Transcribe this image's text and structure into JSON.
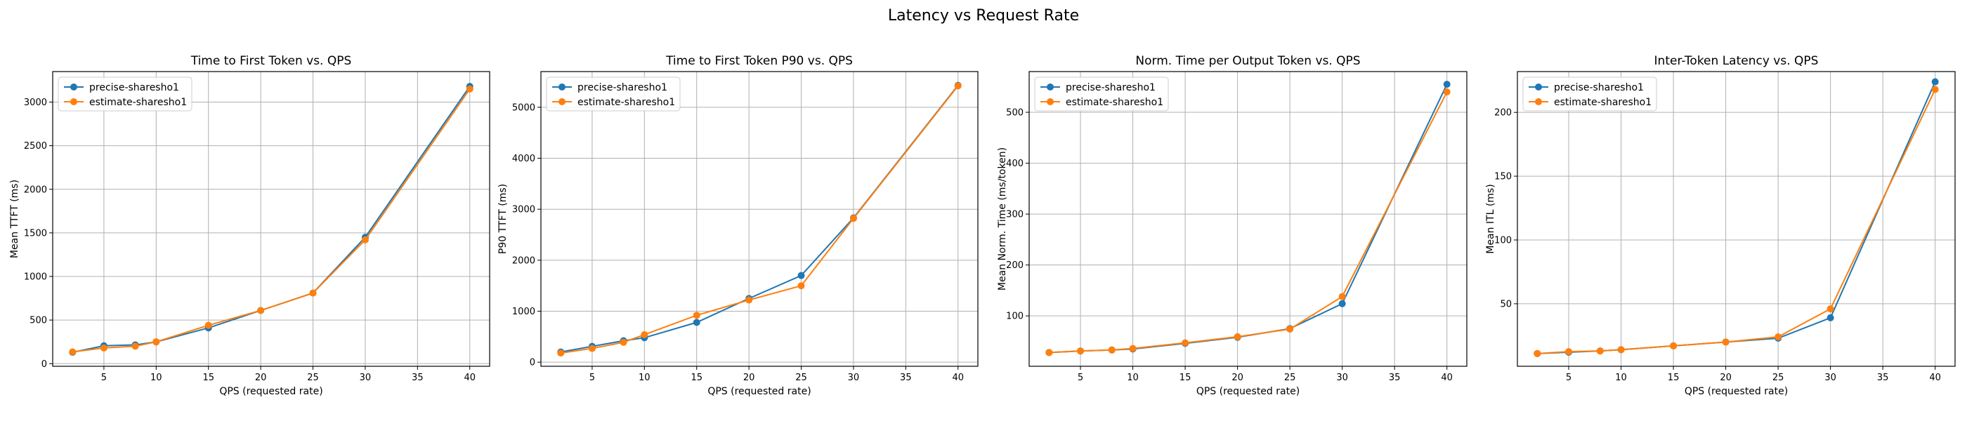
{
  "figure": {
    "suptitle": "Latency vs Request Rate"
  },
  "colors": {
    "precise": "#1f77b4",
    "estimate": "#ff7f0e"
  },
  "chart_data": [
    {
      "type": "line",
      "title": "Time to First Token vs. QPS",
      "xlabel": "QPS (requested rate)",
      "ylabel": "Mean TTFT (ms)",
      "xlim": [
        0.1,
        41.9
      ],
      "ylim": [
        -30,
        3350
      ],
      "xticks": [
        5,
        10,
        15,
        20,
        25,
        30,
        35,
        40
      ],
      "yticks": [
        0,
        500,
        1000,
        1500,
        2000,
        2500,
        3000
      ],
      "grid": true,
      "legend": "top-left",
      "x": [
        2,
        5,
        8,
        10,
        15,
        20,
        25,
        30,
        40
      ],
      "series": [
        {
          "name": "precise-sharesho1",
          "color": "#1f77b4",
          "values": [
            130,
            205,
            215,
            250,
            410,
            610,
            810,
            1450,
            3180
          ]
        },
        {
          "name": "estimate-sharesho1",
          "color": "#ff7f0e",
          "values": [
            135,
            180,
            200,
            250,
            440,
            610,
            810,
            1420,
            3150
          ]
        }
      ]
    },
    {
      "type": "line",
      "title": "Time to First Token P90 vs. QPS",
      "xlabel": "QPS (requested rate)",
      "ylabel": "P90 TTFT (ms)",
      "xlim": [
        0.1,
        41.9
      ],
      "ylim": [
        -80,
        5700
      ],
      "xticks": [
        5,
        10,
        15,
        20,
        25,
        30,
        35,
        40
      ],
      "yticks": [
        0,
        1000,
        2000,
        3000,
        4000,
        5000
      ],
      "grid": true,
      "legend": "top-left",
      "x": [
        2,
        5,
        8,
        10,
        15,
        20,
        25,
        30,
        40
      ],
      "series": [
        {
          "name": "precise-sharesho1",
          "color": "#1f77b4",
          "values": [
            200,
            310,
            420,
            480,
            780,
            1250,
            1700,
            2830,
            5430
          ]
        },
        {
          "name": "estimate-sharesho1",
          "color": "#ff7f0e",
          "values": [
            180,
            270,
            390,
            540,
            920,
            1220,
            1500,
            2820,
            5420
          ]
        }
      ]
    },
    {
      "type": "line",
      "title": "Norm. Time per Output Token vs. QPS",
      "xlabel": "QPS (requested rate)",
      "ylabel": "Mean Norm. Time (ms/token)",
      "xlim": [
        0.1,
        41.9
      ],
      "ylim": [
        1,
        580
      ],
      "xticks": [
        5,
        10,
        15,
        20,
        25,
        30,
        35,
        40
      ],
      "yticks": [
        100,
        200,
        300,
        400,
        500
      ],
      "grid": true,
      "legend": "top-left",
      "x": [
        2,
        5,
        8,
        10,
        15,
        20,
        25,
        30,
        40
      ],
      "series": [
        {
          "name": "precise-sharesho1",
          "color": "#1f77b4",
          "values": [
            28,
            31,
            33,
            35,
            46,
            58,
            75,
            124,
            555
          ]
        },
        {
          "name": "estimate-sharesho1",
          "color": "#ff7f0e",
          "values": [
            28,
            31,
            33,
            36,
            47,
            59,
            74,
            138,
            540
          ]
        }
      ]
    },
    {
      "type": "line",
      "title": "Inter-Token Latency vs. QPS",
      "xlabel": "QPS (requested rate)",
      "ylabel": "Mean ITL (ms)",
      "xlim": [
        0.1,
        41.9
      ],
      "ylim": [
        1,
        232
      ],
      "xticks": [
        5,
        10,
        15,
        20,
        25,
        30,
        35,
        40
      ],
      "yticks": [
        50,
        100,
        150,
        200
      ],
      "grid": true,
      "legend": "top-left",
      "x": [
        2,
        5,
        8,
        10,
        15,
        20,
        25,
        30,
        40
      ],
      "series": [
        {
          "name": "precise-sharesho1",
          "color": "#1f77b4",
          "values": [
            11,
            12,
            13,
            14,
            17,
            20,
            23,
            39,
            224
          ]
        },
        {
          "name": "estimate-sharesho1",
          "color": "#ff7f0e",
          "values": [
            11,
            12.5,
            13,
            14,
            17,
            20,
            24,
            46,
            218
          ]
        }
      ]
    }
  ]
}
